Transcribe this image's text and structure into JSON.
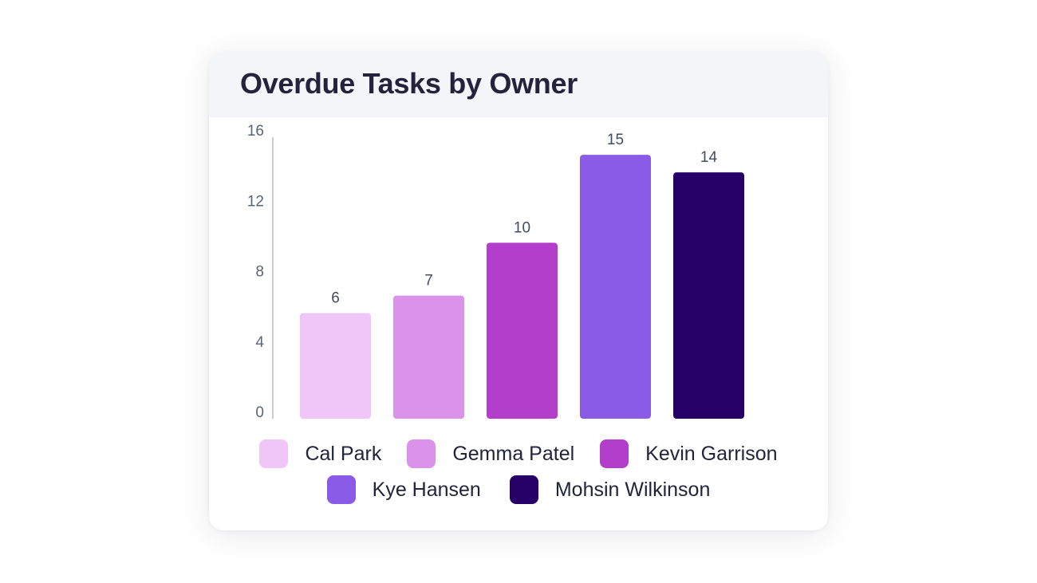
{
  "chart_data": {
    "type": "bar",
    "title": "Overdue Tasks by Owner",
    "categories": [
      "Cal Park",
      "Gemma Patel",
      "Kevin Garrison",
      "Kye Hansen",
      "Mohsin Wilkinson"
    ],
    "values": [
      6,
      7,
      10,
      15,
      14
    ],
    "colors": [
      "#efc6f7",
      "#da93e8",
      "#b33ecc",
      "#8a5be6",
      "#270067"
    ],
    "yticks": [
      0,
      4,
      8,
      12,
      16
    ],
    "ylim": [
      0,
      16
    ],
    "grid": false,
    "legend_position": "bottom",
    "data_labels": true
  }
}
